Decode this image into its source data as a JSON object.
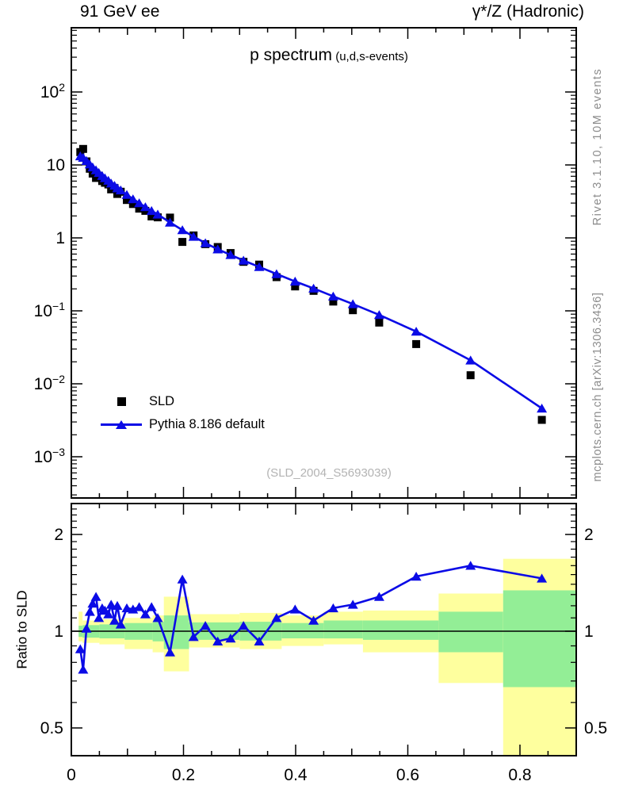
{
  "header": {
    "left": "91 GeV ee",
    "right": "γ*/Z (Hadronic)"
  },
  "title": {
    "main": "p spectrum",
    "sub": "(u,d,s-events)"
  },
  "watermark": "(SLD_2004_S5693039)",
  "side_notes": {
    "top": "Rivet 3.1.10,  10M events",
    "bottom": "mcplots.cern.ch [arXiv:1306.3436]"
  },
  "legend": [
    {
      "label": "SLD",
      "marker": "black-square"
    },
    {
      "label": "Pythia 8.186 default",
      "marker": "blue-line-triangle"
    }
  ],
  "colors": {
    "pythia_blue": "#0b0be6",
    "sld_black": "#000000",
    "band_green": "#93ee96",
    "band_yellow": "#feff9e",
    "note_gray": "#8c8c8c",
    "watermark_gray": "#b3b3b3"
  },
  "chart_data": {
    "type": "line",
    "title": "p spectrum (u,d,s-events)",
    "xlabel": "",
    "xlim": [
      0,
      0.9
    ],
    "x_ticks": {
      "values": [
        0,
        0.2,
        0.4,
        0.6,
        0.8
      ],
      "labels": [
        "0",
        "0.2",
        "0.4",
        "0.6",
        "0.8"
      ]
    },
    "x": [
      0.016,
      0.021,
      0.027,
      0.033,
      0.038,
      0.044,
      0.049,
      0.055,
      0.06,
      0.066,
      0.071,
      0.077,
      0.082,
      0.088,
      0.099,
      0.11,
      0.121,
      0.132,
      0.143,
      0.154,
      0.176,
      0.198,
      0.218,
      0.239,
      0.261,
      0.284,
      0.307,
      0.335,
      0.366,
      0.399,
      0.432,
      0.467,
      0.502,
      0.549,
      0.615,
      0.712,
      0.839
    ],
    "main_panel": {
      "yscale": "log",
      "ylim": [
        0.00027,
        760
      ],
      "y_tick_exponents": [
        2,
        1,
        0,
        -1,
        -2,
        -3
      ],
      "series": [
        {
          "name": "SLD",
          "plot": "scatter",
          "marker": "square",
          "color": "#000000",
          "values": [
            15.0,
            16.6,
            11.2,
            8.87,
            7.62,
            6.64,
            7.09,
            6.02,
            5.69,
            5.4,
            4.63,
            4.81,
            4.0,
            4.29,
            3.31,
            2.91,
            2.52,
            2.35,
            1.97,
            1.91,
            1.9,
            0.88,
            1.08,
            0.82,
            0.75,
            0.62,
            0.47,
            0.43,
            0.29,
            0.216,
            0.188,
            0.134,
            0.102,
            0.069,
            0.035,
            0.0131,
            0.0032
          ]
        },
        {
          "name": "Pythia 8.186 default",
          "plot": "line+markers",
          "marker": "triangle",
          "color": "#0b0be6",
          "values": [
            13.2,
            12.6,
            11.4,
            10.2,
            9.3,
            8.5,
            7.8,
            7.1,
            6.6,
            6.1,
            5.6,
            5.2,
            4.8,
            4.5,
            3.9,
            3.4,
            3.0,
            2.65,
            2.35,
            2.1,
            1.63,
            1.28,
            1.04,
            0.85,
            0.7,
            0.585,
            0.49,
            0.4,
            0.32,
            0.253,
            0.203,
            0.158,
            0.124,
            0.088,
            0.052,
            0.021,
            0.0046
          ]
        }
      ]
    },
    "ratio_panel": {
      "yscale": "log",
      "ylabel": "Ratio to SLD",
      "ylim": [
        0.41,
        2.49
      ],
      "unity_line": 1,
      "y_ticks": {
        "values": [
          2,
          1,
          0.5
        ],
        "labels": [
          "2",
          "1",
          "0.5"
        ]
      },
      "ratio_values": [
        0.88,
        0.76,
        1.02,
        1.15,
        1.22,
        1.28,
        1.1,
        1.18,
        1.16,
        1.13,
        1.21,
        1.08,
        1.2,
        1.05,
        1.18,
        1.17,
        1.19,
        1.13,
        1.19,
        1.1,
        0.86,
        1.45,
        0.96,
        1.04,
        0.93,
        0.95,
        1.04,
        0.93,
        1.1,
        1.17,
        1.08,
        1.18,
        1.21,
        1.28,
        1.48,
        1.6,
        1.46
      ],
      "bands": [
        {
          "x0": 0.013,
          "x1": 0.02,
          "green": [
            0.96,
            1.04
          ],
          "yellow": [
            0.93,
            1.15
          ]
        },
        {
          "x0": 0.02,
          "x1": 0.05,
          "green": [
            0.955,
            1.045
          ],
          "yellow": [
            0.92,
            1.08
          ]
        },
        {
          "x0": 0.05,
          "x1": 0.095,
          "green": [
            0.95,
            1.05
          ],
          "yellow": [
            0.91,
            1.09
          ]
        },
        {
          "x0": 0.095,
          "x1": 0.145,
          "green": [
            0.94,
            1.06
          ],
          "yellow": [
            0.88,
            1.1
          ]
        },
        {
          "x0": 0.145,
          "x1": 0.165,
          "green": [
            0.93,
            1.07
          ],
          "yellow": [
            0.86,
            1.12
          ]
        },
        {
          "x0": 0.165,
          "x1": 0.21,
          "green": [
            0.88,
            1.12
          ],
          "yellow": [
            0.75,
            1.28
          ]
        },
        {
          "x0": 0.21,
          "x1": 0.3,
          "green": [
            0.94,
            1.065
          ],
          "yellow": [
            0.89,
            1.13
          ]
        },
        {
          "x0": 0.3,
          "x1": 0.375,
          "green": [
            0.935,
            1.07
          ],
          "yellow": [
            0.88,
            1.14
          ]
        },
        {
          "x0": 0.375,
          "x1": 0.45,
          "green": [
            0.95,
            1.06
          ],
          "yellow": [
            0.9,
            1.12
          ]
        },
        {
          "x0": 0.45,
          "x1": 0.52,
          "green": [
            0.95,
            1.08
          ],
          "yellow": [
            0.91,
            1.15
          ]
        },
        {
          "x0": 0.52,
          "x1": 0.655,
          "green": [
            0.94,
            1.08
          ],
          "yellow": [
            0.86,
            1.16
          ]
        },
        {
          "x0": 0.655,
          "x1": 0.77,
          "green": [
            0.86,
            1.15
          ],
          "yellow": [
            0.69,
            1.31
          ]
        },
        {
          "x0": 0.77,
          "x1": 0.905,
          "green": [
            0.67,
            1.34
          ],
          "yellow": [
            0.35,
            1.68
          ]
        }
      ]
    }
  }
}
